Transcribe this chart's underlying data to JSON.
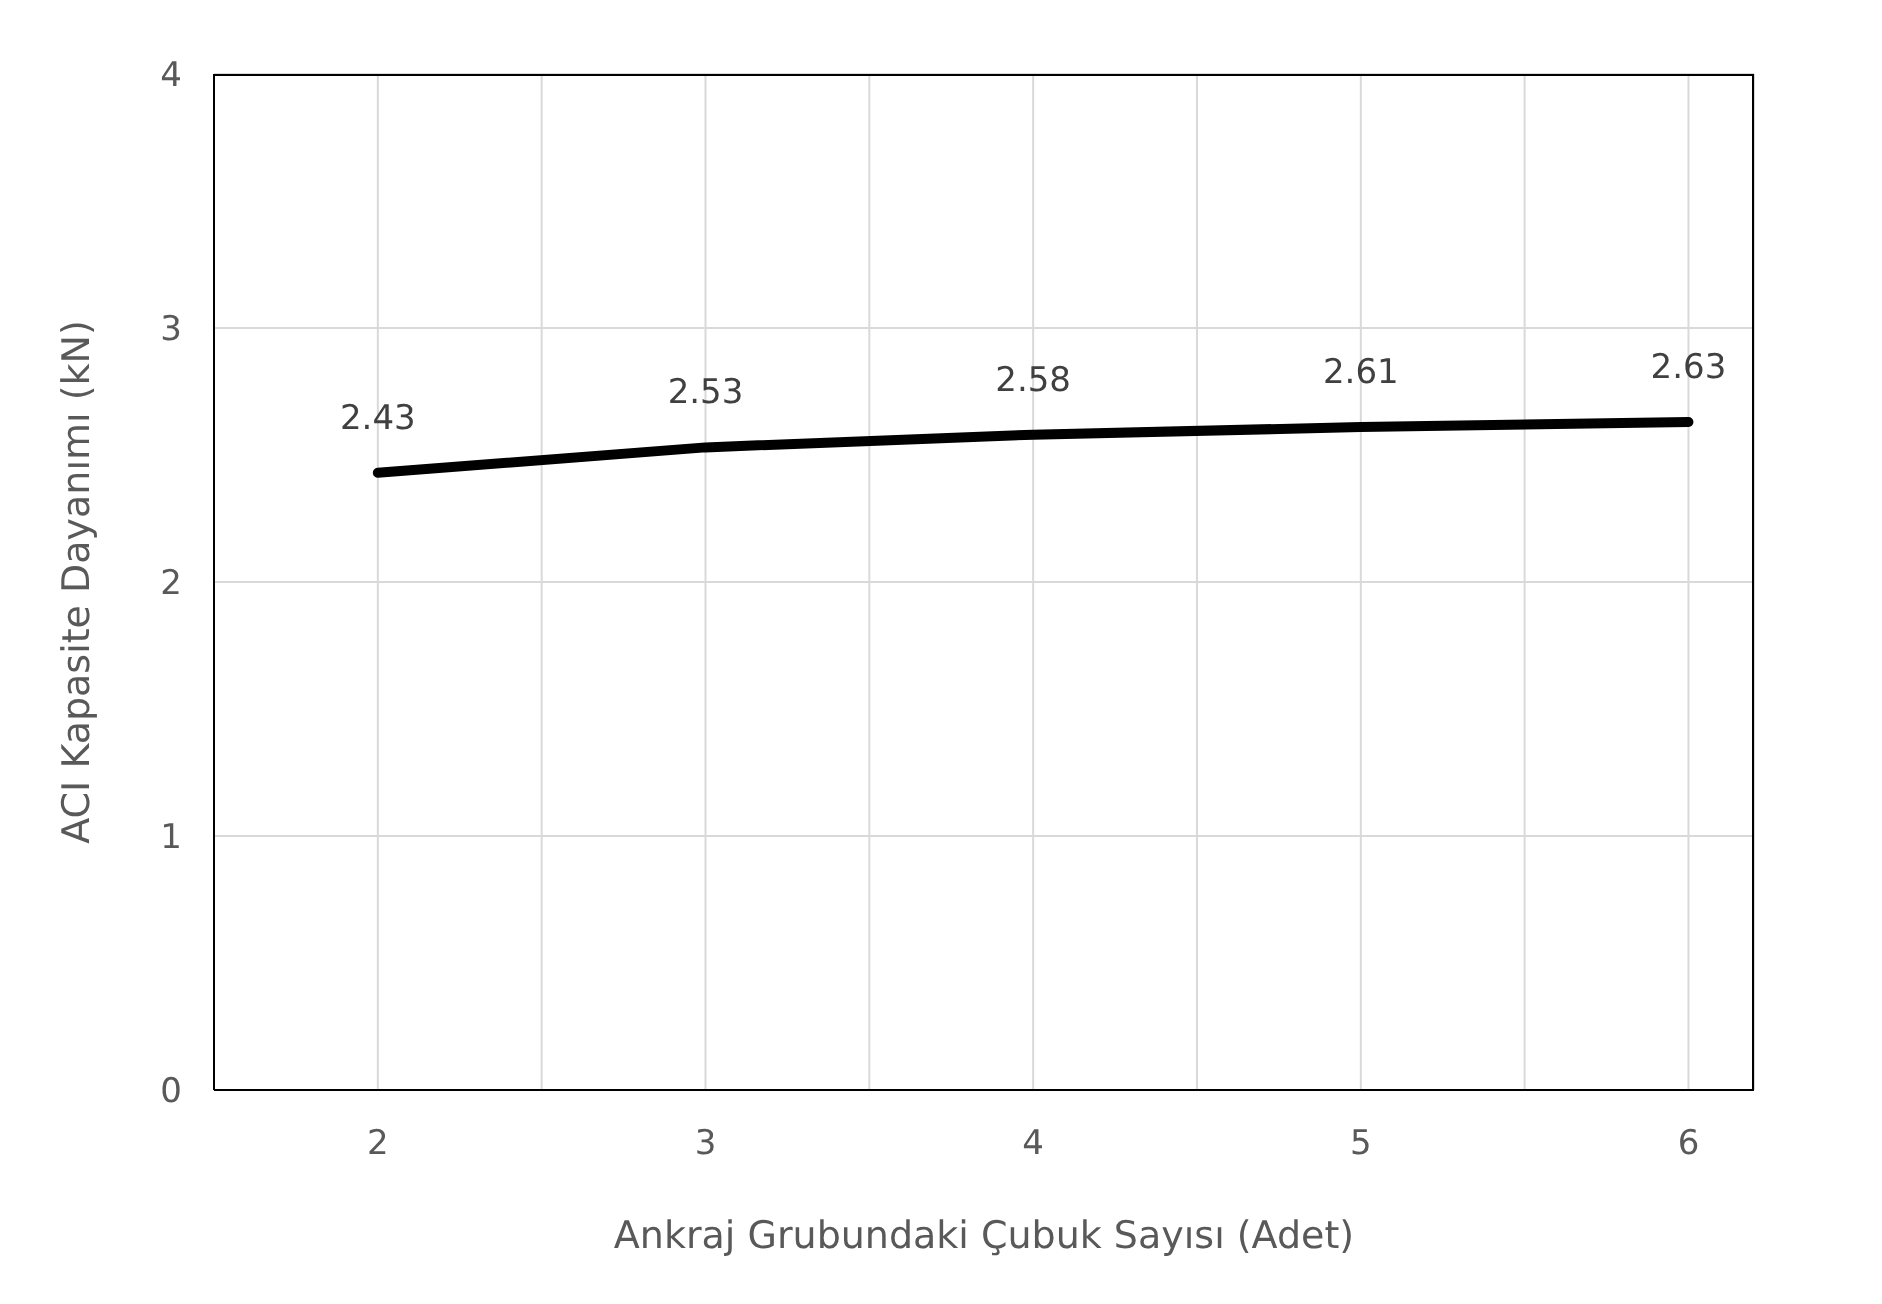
{
  "chart_data": {
    "type": "line",
    "xlabel": "Ankraj Grubundaki Çubuk Sayısı (Adet)",
    "ylabel": "ACI Kapasite Dayanımı (kN)",
    "x": [
      2,
      3,
      4,
      5,
      6
    ],
    "series": [
      {
        "color": "#000000",
        "values": [
          2.43,
          2.53,
          2.58,
          2.61,
          2.63
        ]
      }
    ],
    "xlim": [
      1.5,
      6.2
    ],
    "xticks": [
      {
        "value": 1.5,
        "label": null
      },
      2,
      {
        "value": 2.5,
        "label": null
      },
      3,
      {
        "value": 3.5,
        "label": null
      },
      4,
      {
        "value": 4.5,
        "label": null
      },
      5,
      {
        "value": 5.5,
        "label": null
      },
      6
    ],
    "ylim": [
      0,
      4
    ],
    "yticks": [
      0,
      1,
      2,
      3,
      4
    ],
    "grid": true,
    "marker": "none",
    "line_style": "solid",
    "data_labels": true,
    "legend": false
  }
}
